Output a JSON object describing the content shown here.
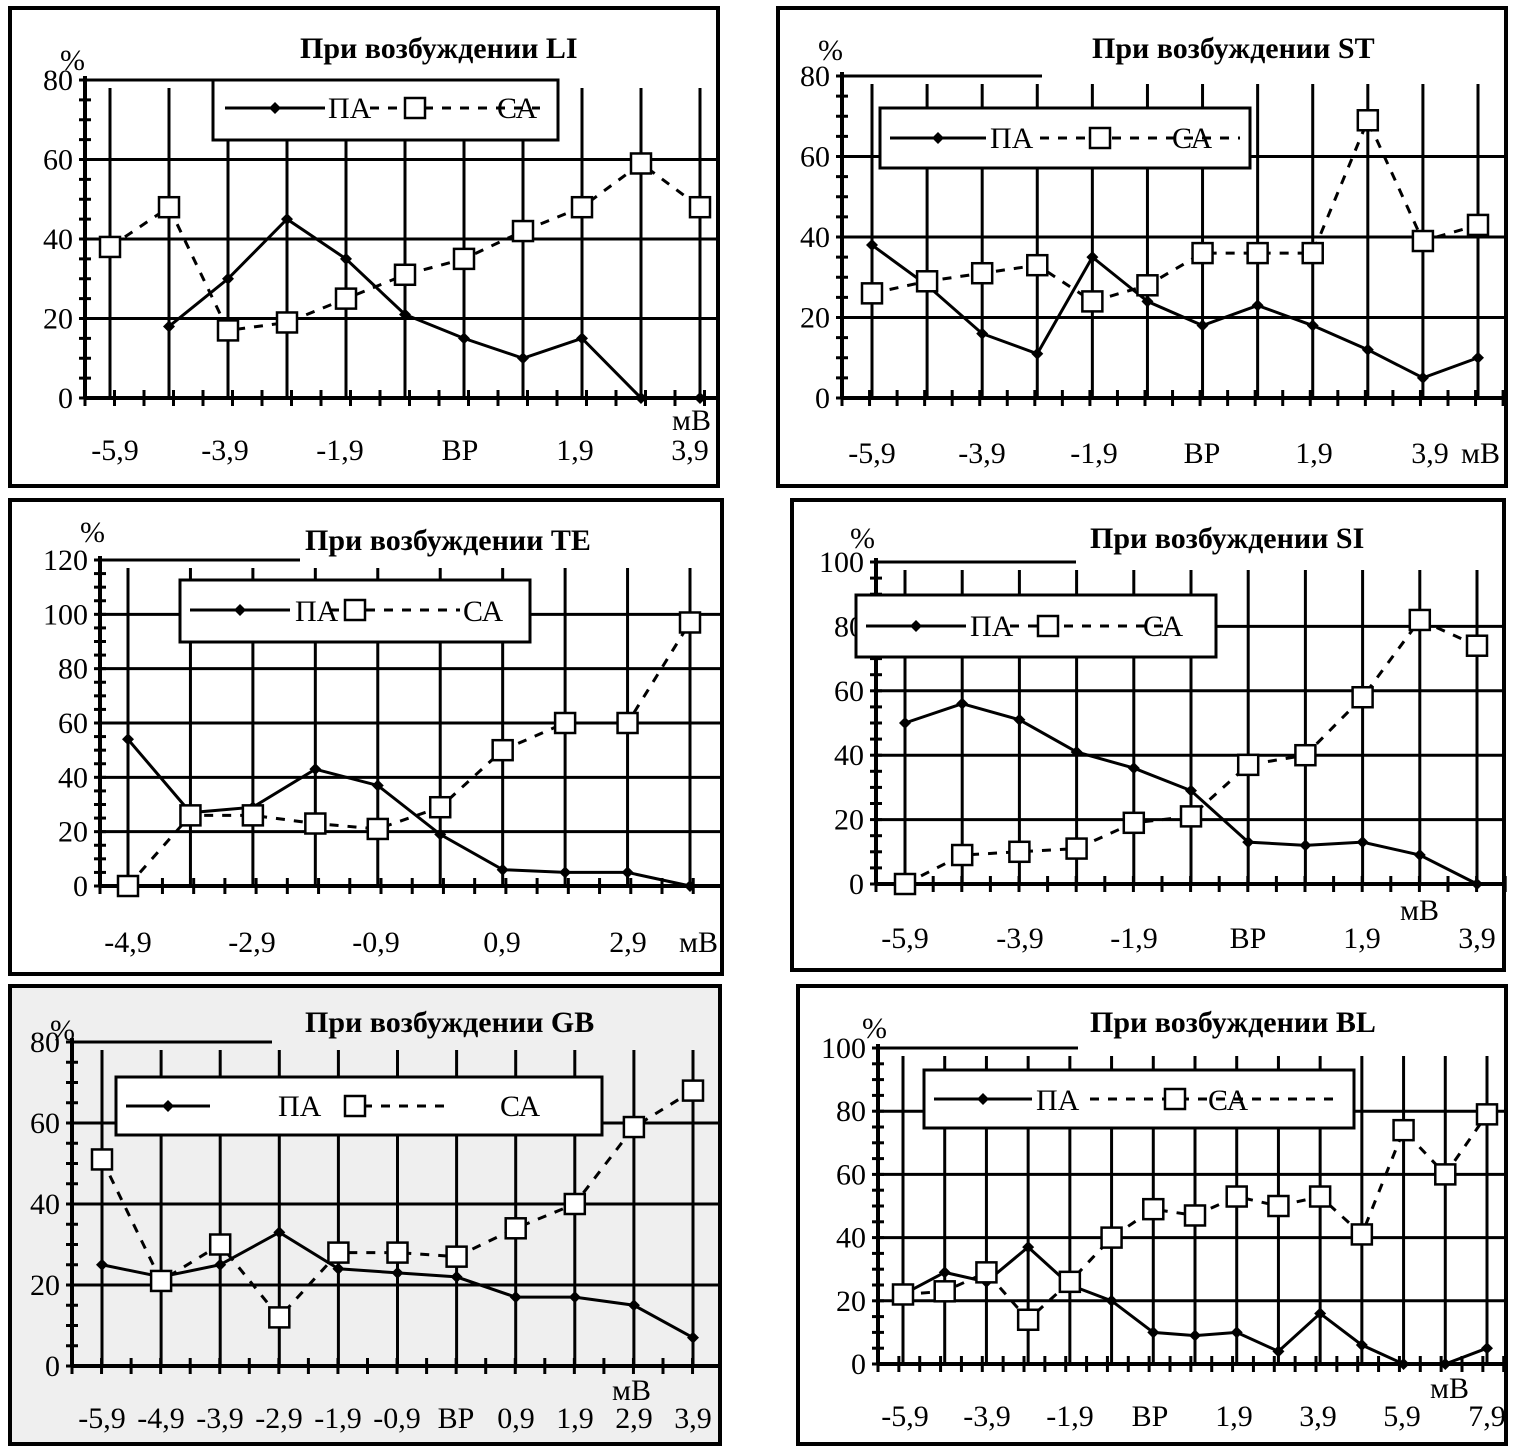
{
  "chart_data": [
    {
      "type": "line",
      "title": "При возбуждении LI",
      "ylabel": "%",
      "unit": "мВ",
      "ylim": [
        0,
        80
      ],
      "yticks": [
        0,
        20,
        40,
        60,
        80
      ],
      "xtick_labels": [
        "-5,9",
        "-3,9",
        "-1,9",
        "ВР",
        "1,9",
        "3,9"
      ],
      "legend": [
        "ПА",
        "СА"
      ],
      "series": [
        {
          "name": "ПА",
          "values": [
            null,
            18,
            30,
            45,
            35,
            21,
            15,
            10,
            15,
            0,
            0
          ]
        },
        {
          "name": "СА",
          "values": [
            38,
            48,
            17,
            19,
            25,
            31,
            35,
            42,
            48,
            59,
            48
          ]
        }
      ]
    },
    {
      "type": "line",
      "title": "При возбуждении ST",
      "ylabel": "%",
      "unit": "мВ",
      "ylim": [
        0,
        80
      ],
      "yticks": [
        0,
        20,
        40,
        60,
        80
      ],
      "xtick_labels": [
        "-5,9",
        "-3,9",
        "-1,9",
        "ВР",
        "1,9",
        "3,9"
      ],
      "legend": [
        "ПА",
        "СА"
      ],
      "series": [
        {
          "name": "ПА",
          "values": [
            38,
            28,
            16,
            11,
            35,
            24,
            18,
            23,
            18,
            12,
            5,
            10
          ]
        },
        {
          "name": "СА",
          "values": [
            26,
            29,
            31,
            33,
            24,
            28,
            36,
            36,
            36,
            69,
            39,
            43
          ]
        }
      ]
    },
    {
      "type": "line",
      "title": "При возбуждении TE",
      "ylabel": "%",
      "unit": "мВ",
      "ylim": [
        0,
        120
      ],
      "yticks": [
        0,
        20,
        40,
        60,
        80,
        100,
        120
      ],
      "xtick_labels": [
        "-4,9",
        "-2,9",
        "-0,9",
        "0,9",
        "2,9"
      ],
      "legend": [
        "ПА",
        "СА"
      ],
      "series": [
        {
          "name": "ПА",
          "values": [
            54,
            27,
            29,
            43,
            37,
            19,
            6,
            5,
            5,
            0
          ]
        },
        {
          "name": "СА",
          "values": [
            0,
            26,
            26,
            23,
            21,
            29,
            50,
            60,
            60,
            97
          ]
        }
      ]
    },
    {
      "type": "line",
      "title": "При возбуждении SI",
      "ylabel": "%",
      "unit": "мВ",
      "ylim": [
        0,
        100
      ],
      "yticks": [
        0,
        20,
        40,
        60,
        80,
        100
      ],
      "xtick_labels": [
        "-5,9",
        "-3,9",
        "-1,9",
        "ВР",
        "1,9",
        "3,9"
      ],
      "legend": [
        "ПА",
        "СА"
      ],
      "series": [
        {
          "name": "ПА",
          "values": [
            50,
            56,
            51,
            41,
            36,
            29,
            13,
            12,
            13,
            9,
            0
          ]
        },
        {
          "name": "СА",
          "values": [
            0,
            9,
            10,
            11,
            19,
            21,
            37,
            40,
            58,
            82,
            74
          ]
        }
      ]
    },
    {
      "type": "line",
      "title": "При возбуждении GB",
      "ylabel": "%",
      "unit": "мВ",
      "ylim": [
        0,
        80
      ],
      "yticks": [
        0,
        20,
        40,
        60,
        80
      ],
      "xtick_labels": [
        "-5,9",
        "-4,9",
        "-3,9",
        "-2,9",
        "-1,9",
        "-0,9",
        "ВР",
        "0,9",
        "1,9",
        "2,9",
        "3,9"
      ],
      "legend": [
        "ПА",
        "СА"
      ],
      "series": [
        {
          "name": "ПА",
          "values": [
            25,
            22,
            25,
            33,
            24,
            23,
            22,
            17,
            17,
            15,
            7
          ]
        },
        {
          "name": "СА",
          "values": [
            51,
            21,
            30,
            12,
            28,
            28,
            27,
            34,
            40,
            59,
            68
          ]
        }
      ]
    },
    {
      "type": "line",
      "title": "При возбуждении BL",
      "ylabel": "%",
      "unit": "мВ",
      "ylim": [
        0,
        100
      ],
      "yticks": [
        0,
        20,
        40,
        60,
        80,
        100
      ],
      "xtick_labels": [
        "-5,9",
        "-3,9",
        "-1,9",
        "ВР",
        "1,9",
        "3,9",
        "5,9",
        "7,9"
      ],
      "legend": [
        "ПА",
        "СА"
      ],
      "series": [
        {
          "name": "ПА",
          "values": [
            22,
            29,
            26,
            37,
            25,
            20,
            10,
            9,
            10,
            4,
            16,
            6,
            0,
            0,
            5
          ]
        },
        {
          "name": "СА",
          "values": [
            22,
            23,
            29,
            14,
            26,
            40,
            49,
            47,
            53,
            50,
            53,
            41,
            74,
            60,
            79
          ]
        }
      ]
    }
  ]
}
